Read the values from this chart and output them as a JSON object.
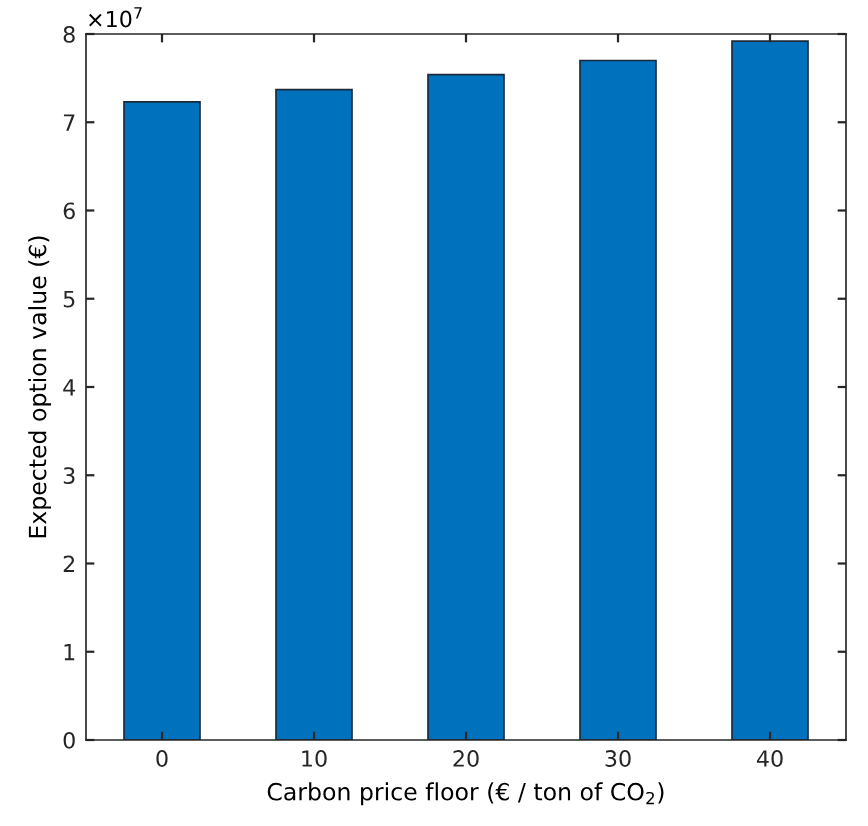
{
  "chart_data": {
    "type": "bar",
    "xlabel": "Carbon price floor (€ / ton of CO$_{2}$)",
    "ylabel": "Expected option value (€)",
    "categories": [
      "0",
      "10",
      "20",
      "30",
      "40"
    ],
    "values": [
      7.23,
      7.37,
      7.54,
      7.7,
      7.92
    ],
    "color": "#0072bd",
    "ylim": [
      0,
      8
    ],
    "yticks": [
      0,
      1,
      2,
      3,
      4,
      5,
      6,
      7,
      8
    ],
    "annotations": [
      "×10$^{7}$"
    ],
    "grid": false,
    "legend": false
  }
}
